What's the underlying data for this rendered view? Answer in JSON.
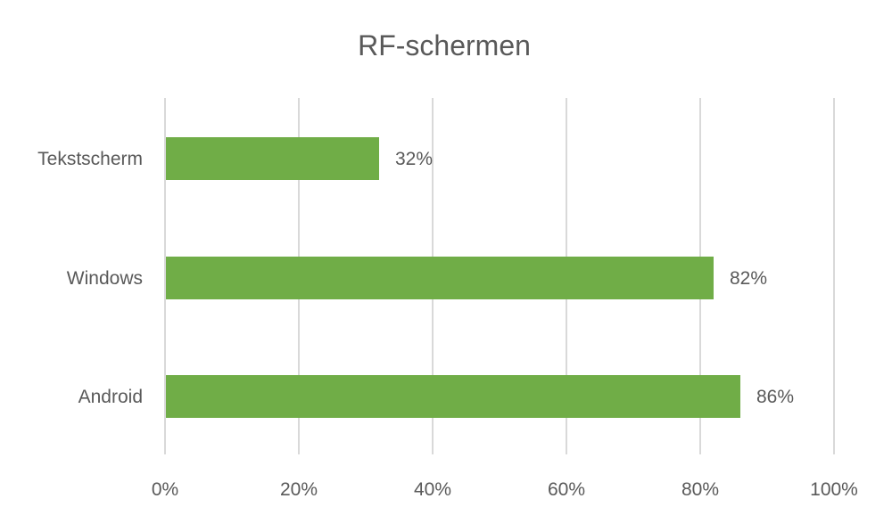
{
  "chart_data": {
    "type": "bar",
    "orientation": "horizontal",
    "title": "RF-schermen",
    "xlabel": "",
    "ylabel": "",
    "categories": [
      "Tekstscherm",
      "Windows",
      "Android"
    ],
    "values": [
      32,
      82,
      86
    ],
    "value_labels": [
      "32%",
      "82%",
      "86%"
    ],
    "x_ticks": [
      "0%",
      "20%",
      "40%",
      "60%",
      "80%",
      "100%"
    ],
    "xlim": [
      0,
      100
    ],
    "grid": "vertical",
    "legend": "none",
    "colors": {
      "bar": "#70ad47",
      "grid": "#d9d9d9",
      "text": "#595959",
      "title": "#595959"
    }
  }
}
